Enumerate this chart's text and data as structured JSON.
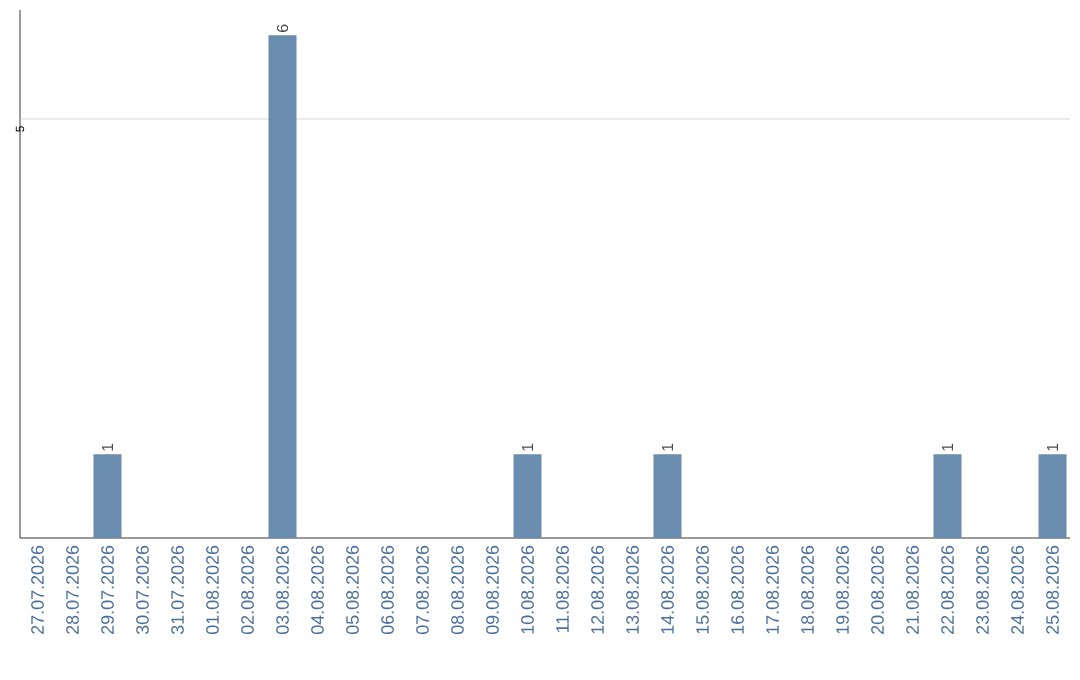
{
  "chart_data": {
    "type": "bar",
    "categories": [
      "27.07.2026",
      "28.07.2026",
      "29.07.2026",
      "30.07.2026",
      "31.07.2026",
      "01.08.2026",
      "02.08.2026",
      "03.08.2026",
      "04.08.2026",
      "05.08.2026",
      "06.08.2026",
      "07.08.2026",
      "08.08.2026",
      "09.08.2026",
      "10.08.2026",
      "11.08.2026",
      "12.08.2026",
      "13.08.2026",
      "14.08.2026",
      "15.08.2026",
      "16.08.2026",
      "17.08.2026",
      "18.08.2026",
      "19.08.2026",
      "20.08.2026",
      "21.08.2026",
      "22.08.2026",
      "23.08.2026",
      "24.08.2026",
      "25.08.2026"
    ],
    "values": [
      0,
      0,
      1,
      0,
      0,
      0,
      0,
      6,
      0,
      0,
      0,
      0,
      0,
      0,
      1,
      0,
      0,
      0,
      1,
      0,
      0,
      0,
      0,
      0,
      0,
      0,
      1,
      0,
      0,
      1
    ],
    "value_labels": [
      null,
      null,
      "1",
      null,
      null,
      null,
      null,
      "6",
      null,
      null,
      null,
      null,
      null,
      null,
      "1",
      null,
      null,
      null,
      "1",
      null,
      null,
      null,
      null,
      null,
      null,
      null,
      "1",
      null,
      null,
      "1"
    ],
    "color": "#6a8caf",
    "ylim": [
      0,
      6.3
    ],
    "ref_lines": [
      {
        "axis": "y",
        "value": 5,
        "label": "5",
        "color": "#cccccc"
      }
    ]
  }
}
